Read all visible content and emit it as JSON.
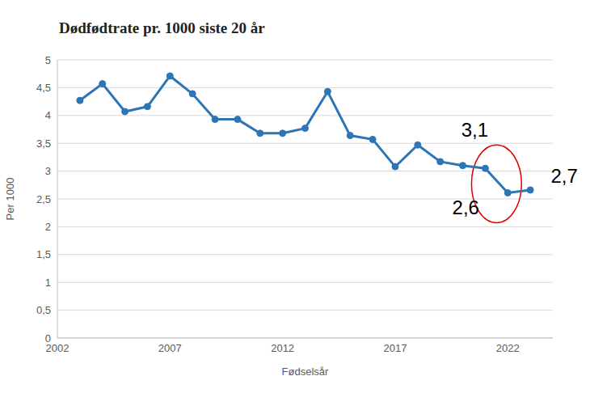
{
  "chart_data": {
    "type": "line",
    "title": "Dødfødtrate pr. 1000 siste 20 år",
    "x_label": "Fødselsår",
    "y_label": "Per 1000",
    "x": [
      2003,
      2004,
      2005,
      2006,
      2007,
      2008,
      2009,
      2010,
      2011,
      2012,
      2013,
      2014,
      2015,
      2016,
      2017,
      2018,
      2019,
      2020,
      2021,
      2022,
      2023
    ],
    "values": [
      4.27,
      4.57,
      4.07,
      4.16,
      4.71,
      4.39,
      3.93,
      3.93,
      3.68,
      3.68,
      3.77,
      4.43,
      3.64,
      3.57,
      3.08,
      3.47,
      3.17,
      3.1,
      3.05,
      2.61,
      2.66
    ],
    "color": "#2e75b6",
    "marker": "circle",
    "xlim": [
      2002,
      2024
    ],
    "xticks": [
      2002,
      2007,
      2012,
      2017,
      2022
    ],
    "ylim": [
      0,
      5
    ],
    "yticks": [
      0,
      {
        "value": 0.5,
        "label": "0,5"
      },
      1,
      {
        "value": 1.5,
        "label": "1,5"
      },
      2,
      {
        "value": 2.5,
        "label": "2,5"
      },
      3,
      {
        "value": 3.5,
        "label": "3,5"
      },
      4,
      {
        "value": 4.5,
        "label": "4,5"
      },
      5
    ],
    "grid": true,
    "annotations": [
      {
        "text": "3,1",
        "x": 2021
      },
      {
        "text": "2,6",
        "x": 2022
      },
      {
        "text": "2,7",
        "x": 2023
      }
    ]
  }
}
